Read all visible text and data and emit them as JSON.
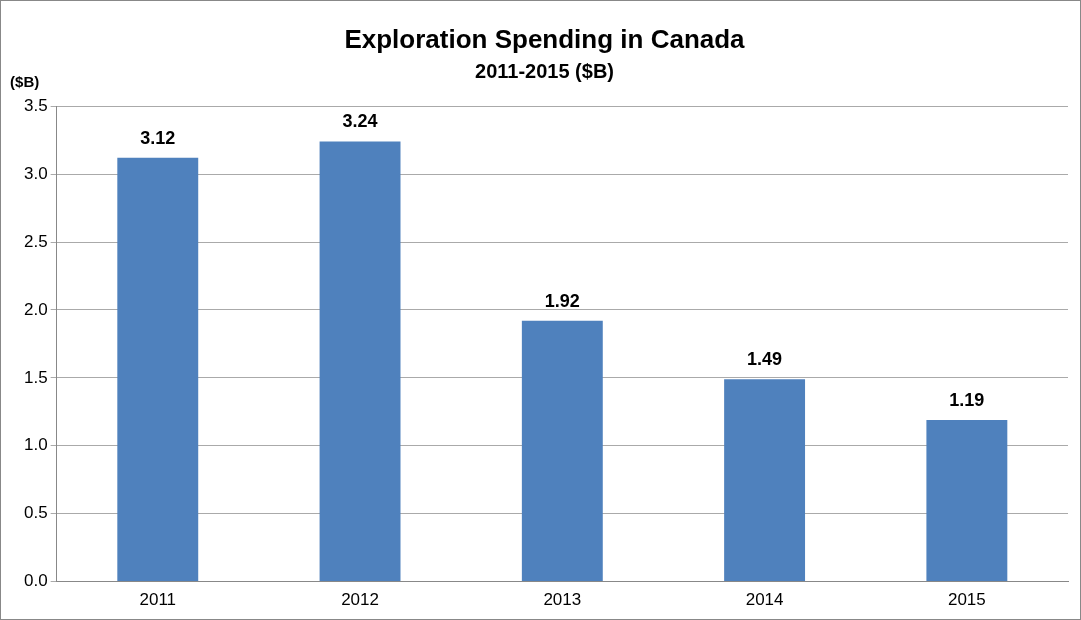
{
  "chart_data": {
    "type": "bar",
    "title": "Exploration Spending in Canada",
    "subtitle": "2011-2015 ($B)",
    "ylabel": "($B)",
    "categories": [
      "2011",
      "2012",
      "2013",
      "2014",
      "2015"
    ],
    "values": [
      3.12,
      3.24,
      1.92,
      1.49,
      1.19
    ],
    "color": "#4f81bd",
    "ylim": [
      0,
      3.5
    ],
    "yticks": [
      {
        "value": 0,
        "label": "0.0"
      },
      {
        "value": 0.5,
        "label": "0.5"
      },
      {
        "value": 1,
        "label": "1.0"
      },
      {
        "value": 1.5,
        "label": "1.5"
      },
      {
        "value": 2,
        "label": "2.0"
      },
      {
        "value": 2.5,
        "label": "2.5"
      },
      {
        "value": 3,
        "label": "3.0"
      },
      {
        "value": 3.5,
        "label": "3.5"
      }
    ],
    "grid": "y",
    "legend": false,
    "data_labels": true
  }
}
